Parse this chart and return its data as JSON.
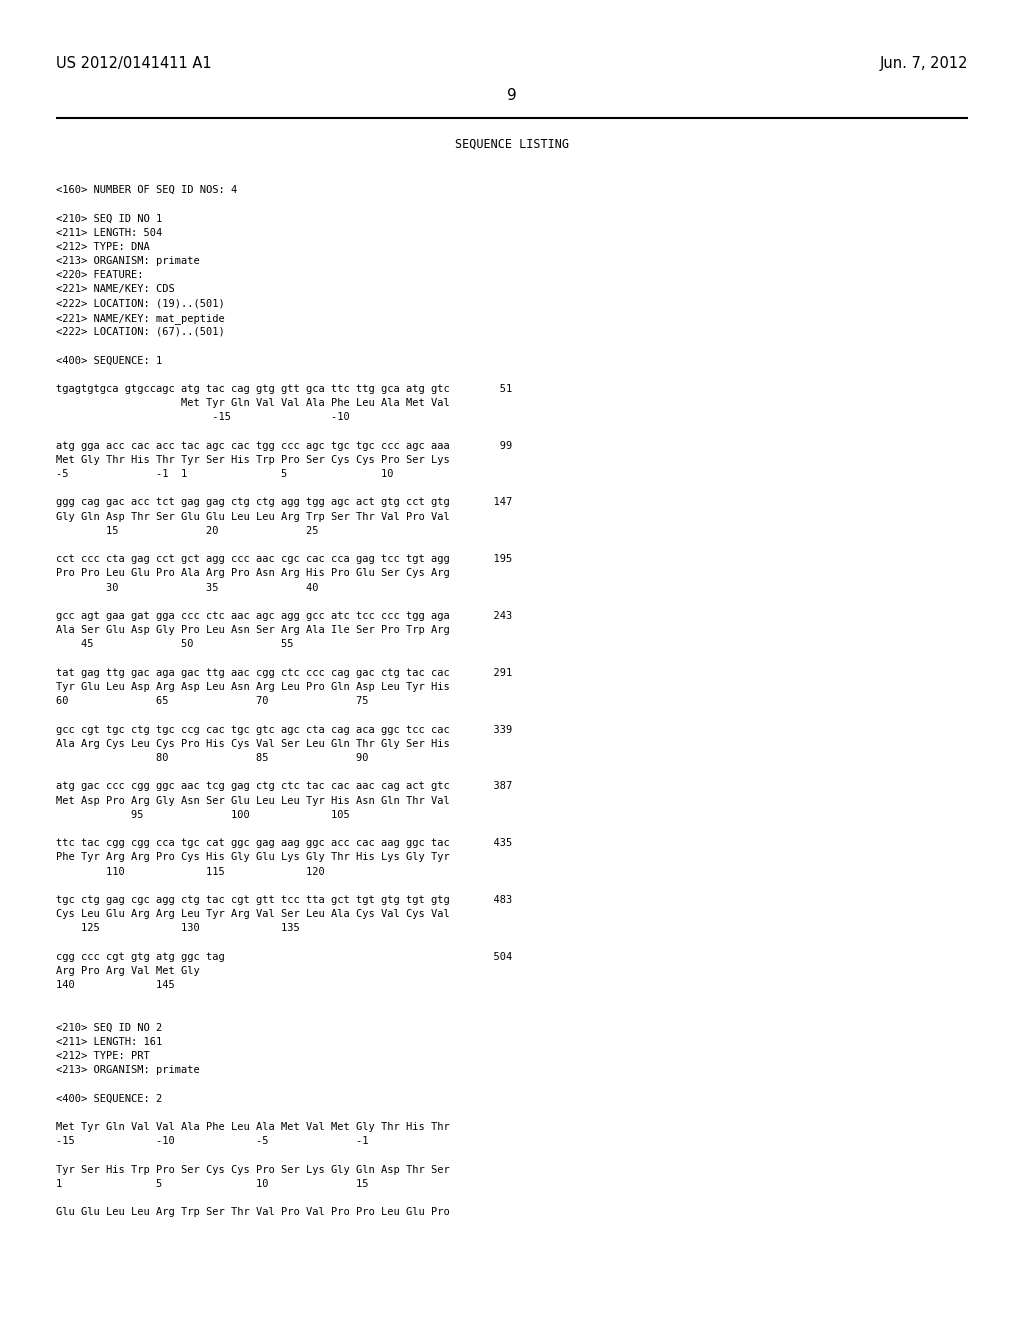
{
  "bg_color": "#ffffff",
  "text_color": "#000000",
  "header_left": "US 2012/0141411 A1",
  "header_right": "Jun. 7, 2012",
  "page_number": "9",
  "section_title": "SEQUENCE LISTING",
  "content_lines": [
    "<160> NUMBER OF SEQ ID NOS: 4",
    "",
    "<210> SEQ ID NO 1",
    "<211> LENGTH: 504",
    "<212> TYPE: DNA",
    "<213> ORGANISM: primate",
    "<220> FEATURE:",
    "<221> NAME/KEY: CDS",
    "<222> LOCATION: (19)..(501)",
    "<221> NAME/KEY: mat_peptide",
    "<222> LOCATION: (67)..(501)",
    "",
    "<400> SEQUENCE: 1",
    "",
    "tgagtgtgca gtgccagc atg tac cag gtg gtt gca ttc ttg gca atg gtc        51",
    "                    Met Tyr Gln Val Val Ala Phe Leu Ala Met Val",
    "                         -15                -10",
    "",
    "atg gga acc cac acc tac agc cac tgg ccc agc tgc tgc ccc agc aaa        99",
    "Met Gly Thr His Thr Tyr Ser His Trp Pro Ser Cys Cys Pro Ser Lys",
    "-5              -1  1               5               10",
    "",
    "ggg cag gac acc tct gag gag ctg ctg agg tgg agc act gtg cct gtg       147",
    "Gly Gln Asp Thr Ser Glu Glu Leu Leu Arg Trp Ser Thr Val Pro Val",
    "        15              20              25",
    "",
    "cct ccc cta gag cct gct agg ccc aac cgc cac cca gag tcc tgt agg       195",
    "Pro Pro Leu Glu Pro Ala Arg Pro Asn Arg His Pro Glu Ser Cys Arg",
    "        30              35              40",
    "",
    "gcc agt gaa gat gga ccc ctc aac agc agg gcc atc tcc ccc tgg aga       243",
    "Ala Ser Glu Asp Gly Pro Leu Asn Ser Arg Ala Ile Ser Pro Trp Arg",
    "    45              50              55",
    "",
    "tat gag ttg gac aga gac ttg aac cgg ctc ccc cag gac ctg tac cac       291",
    "Tyr Glu Leu Asp Arg Asp Leu Asn Arg Leu Pro Gln Asp Leu Tyr His",
    "60              65              70              75",
    "",
    "gcc cgt tgc ctg tgc ccg cac tgc gtc agc cta cag aca ggc tcc cac       339",
    "Ala Arg Cys Leu Cys Pro His Cys Val Ser Leu Gln Thr Gly Ser His",
    "                80              85              90",
    "",
    "atg gac ccc cgg ggc aac tcg gag ctg ctc tac cac aac cag act gtc       387",
    "Met Asp Pro Arg Gly Asn Ser Glu Leu Leu Tyr His Asn Gln Thr Val",
    "            95              100             105",
    "",
    "ttc tac cgg cgg cca tgc cat ggc gag aag ggc acc cac aag ggc tac       435",
    "Phe Tyr Arg Arg Pro Cys His Gly Glu Lys Gly Thr His Lys Gly Tyr",
    "        110             115             120",
    "",
    "tgc ctg gag cgc agg ctg tac cgt gtt tcc tta gct tgt gtg tgt gtg       483",
    "Cys Leu Glu Arg Arg Leu Tyr Arg Val Ser Leu Ala Cys Val Cys Val",
    "    125             130             135",
    "",
    "cgg ccc cgt gtg atg ggc tag                                           504",
    "Arg Pro Arg Val Met Gly",
    "140             145",
    "",
    "",
    "<210> SEQ ID NO 2",
    "<211> LENGTH: 161",
    "<212> TYPE: PRT",
    "<213> ORGANISM: primate",
    "",
    "<400> SEQUENCE: 2",
    "",
    "Met Tyr Gln Val Val Ala Phe Leu Ala Met Val Met Gly Thr His Thr",
    "-15             -10             -5              -1",
    "",
    "Tyr Ser His Trp Pro Ser Cys Cys Pro Ser Lys Gly Gln Asp Thr Ser",
    "1               5               10              15",
    "",
    "Glu Glu Leu Leu Arg Trp Ser Thr Val Pro Val Pro Pro Leu Glu Pro"
  ]
}
